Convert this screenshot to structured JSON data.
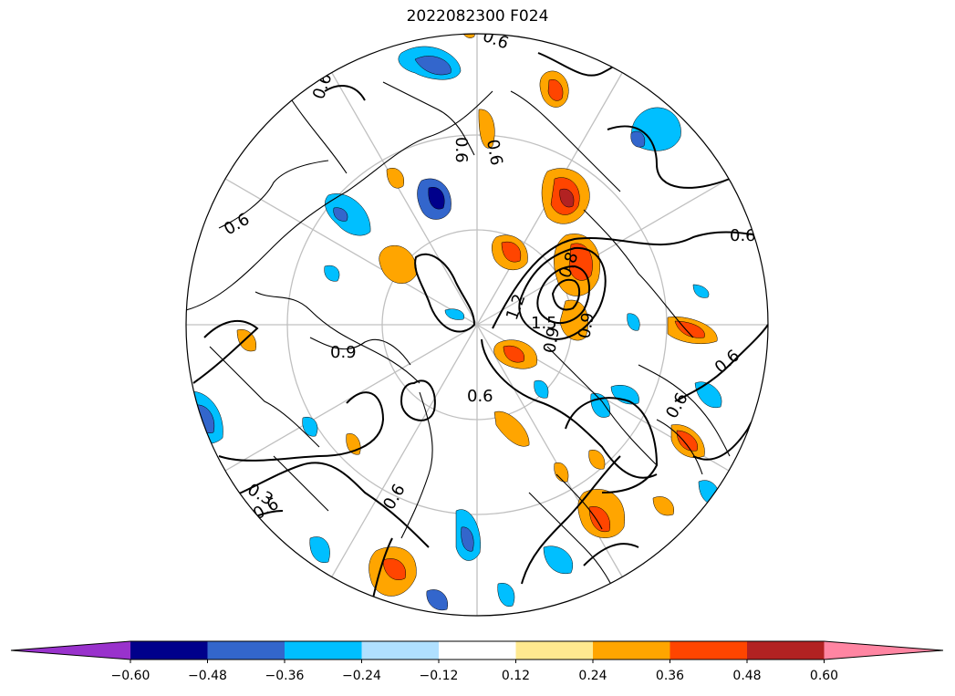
{
  "title": "2022082300 F024",
  "colorbar": {
    "extend": "both",
    "colors": [
      "#9932cc",
      "#00008b",
      "#3366cc",
      "#00bfff",
      "#b0e0ff",
      "#ffffff",
      "#ffe98f",
      "#ffa500",
      "#ff4500",
      "#b22222",
      "#ff85a2"
    ],
    "boundaries": [
      -0.6,
      -0.48,
      -0.36,
      -0.24,
      -0.12,
      0.12,
      0.24,
      0.36,
      0.48,
      0.6
    ],
    "tick_labels": [
      "−0.60",
      "−0.48",
      "−0.36",
      "−0.24",
      "−0.12",
      "0.12",
      "0.24",
      "0.36",
      "0.48",
      "0.60"
    ]
  },
  "contour_labels": [
    "0.6",
    "0.6",
    "0.6",
    "0.6",
    "0.6",
    "0.6",
    "0.6",
    "0.6",
    "0.9",
    "0.9",
    "0.9",
    "1.2",
    "1.5",
    "0.8",
    "0.3",
    "0.6",
    "0.6",
    "0.6"
  ],
  "map": {
    "projection": "north-polar-stereographic",
    "gridlines": true,
    "coastlines": true,
    "shading": [
      {
        "bin": 6,
        "lon": 320,
        "lat": 78
      },
      {
        "bin": 7,
        "lon": 95,
        "lat": 75
      },
      {
        "bin": 9,
        "lon": 60,
        "lat": 62
      },
      {
        "bin": 2,
        "lon": 300,
        "lat": 63
      },
      {
        "bin": 7,
        "lon": 140,
        "lat": 78
      },
      {
        "bin": 8,
        "lon": 35,
        "lat": 72
      }
    ]
  }
}
